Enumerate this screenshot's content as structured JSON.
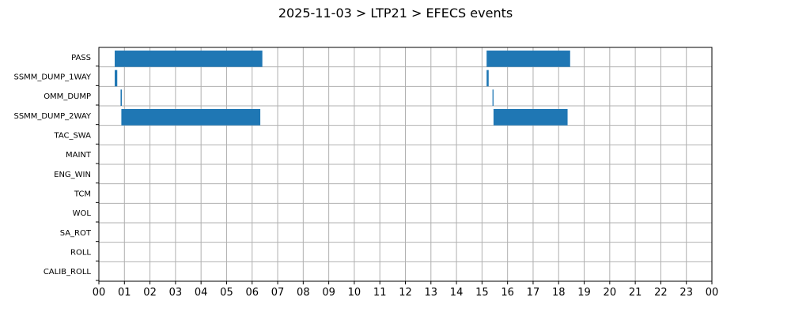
{
  "chart_data": {
    "type": "bar",
    "orientation": "horizontal-timeline",
    "title": "2025-11-03 > LTP21 > EFECS events",
    "xlabel": "",
    "ylabel": "",
    "xlim": [
      0,
      24
    ],
    "x_tick_labels": [
      "00",
      "01",
      "02",
      "03",
      "04",
      "05",
      "06",
      "07",
      "08",
      "09",
      "10",
      "11",
      "12",
      "13",
      "14",
      "15",
      "16",
      "17",
      "18",
      "19",
      "20",
      "21",
      "22",
      "23",
      "00"
    ],
    "categories": [
      "PASS",
      "SSMM_DUMP_1WAY",
      "OMM_DUMP",
      "SSMM_DUMP_2WAY",
      "TAC_SWA",
      "MAINT",
      "ENG_WIN",
      "TCM",
      "WOL",
      "SA_ROT",
      "ROLL",
      "CALIB_ROLL"
    ],
    "grid": true,
    "bar_color": "#1f77b4",
    "events": [
      {
        "category": "PASS",
        "start": 0.62,
        "end": 6.4
      },
      {
        "category": "PASS",
        "start": 15.18,
        "end": 18.45
      },
      {
        "category": "SSMM_DUMP_1WAY",
        "start": 0.62,
        "end": 0.72
      },
      {
        "category": "SSMM_DUMP_1WAY",
        "start": 15.18,
        "end": 15.26
      },
      {
        "category": "OMM_DUMP",
        "start": 0.85,
        "end": 0.9
      },
      {
        "category": "OMM_DUMP",
        "start": 15.41,
        "end": 15.45
      },
      {
        "category": "SSMM_DUMP_2WAY",
        "start": 0.88,
        "end": 6.32
      },
      {
        "category": "SSMM_DUMP_2WAY",
        "start": 15.45,
        "end": 18.35
      }
    ]
  }
}
